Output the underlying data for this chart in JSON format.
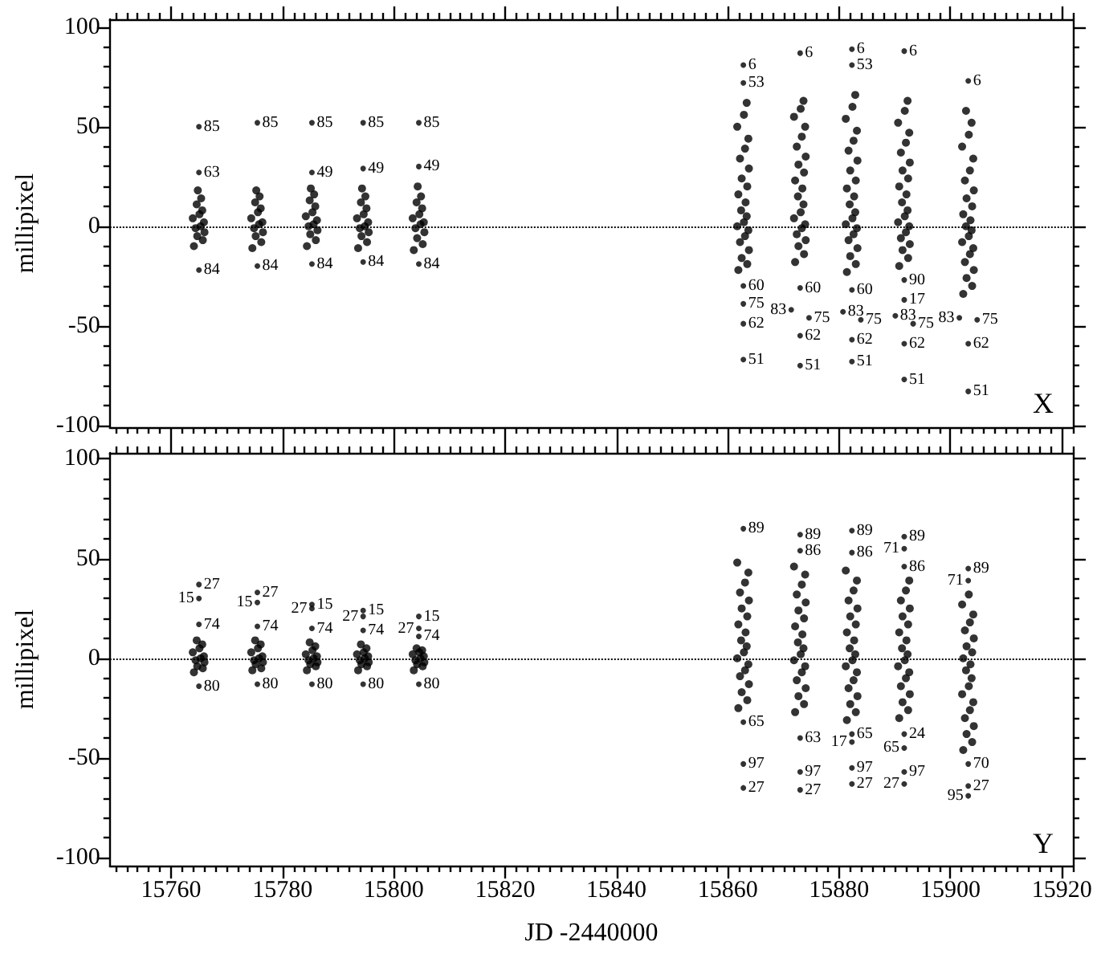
{
  "chart_data": [
    {
      "type": "scatter",
      "ylabel": "millipixel",
      "xlim": [
        15749,
        15922
      ],
      "xticks": [
        15760,
        15780,
        15800,
        15820,
        15840,
        15860,
        15880,
        15900,
        15920
      ],
      "ylim": [
        -101,
        104
      ],
      "yticks": [
        -100,
        -50,
        0,
        50,
        100
      ],
      "tick_labels": "y",
      "marker": "circle",
      "ref_lines": [
        {
          "axis": "y",
          "value": 0,
          "line_style": "dotted"
        }
      ],
      "annotations": [
        "X",
        {
          "text": "85",
          "x": 15765,
          "y": 50
        },
        {
          "text": "63",
          "x": 15765,
          "y": 27
        },
        {
          "text": "84",
          "x": 15765,
          "y": -22
        },
        {
          "text": "85",
          "x": 15775.5,
          "y": 52
        },
        {
          "text": "84",
          "x": 15775.5,
          "y": -20
        },
        {
          "text": "85",
          "x": 15785.3,
          "y": 52
        },
        {
          "text": "49",
          "x": 15785.3,
          "y": 27
        },
        {
          "text": "84",
          "x": 15785.3,
          "y": -19
        },
        {
          "text": "85",
          "x": 15794.5,
          "y": 52
        },
        {
          "text": "49",
          "x": 15794.5,
          "y": 29
        },
        {
          "text": "84",
          "x": 15794.5,
          "y": -18
        },
        {
          "text": "85",
          "x": 15804.5,
          "y": 52
        },
        {
          "text": "49",
          "x": 15804.5,
          "y": 30
        },
        {
          "text": "84",
          "x": 15804.5,
          "y": -19
        },
        {
          "text": "6",
          "x": 15862.8,
          "y": 81
        },
        {
          "text": "53",
          "x": 15862.8,
          "y": 72
        },
        {
          "text": "60",
          "x": 15862.8,
          "y": -30
        },
        {
          "text": "75",
          "x": 15862.8,
          "y": -39
        },
        {
          "text": "62",
          "x": 15862.8,
          "y": -49
        },
        {
          "text": "51",
          "x": 15862.8,
          "y": -67
        },
        {
          "text": "6",
          "x": 15873,
          "y": 87
        },
        {
          "text": "60",
          "x": 15873,
          "y": -31
        },
        {
          "text": "83",
          "x": 15871.4,
          "y": -42
        },
        {
          "text": "75",
          "x": 15874.6,
          "y": -46
        },
        {
          "text": "62",
          "x": 15873,
          "y": -55
        },
        {
          "text": "51",
          "x": 15873,
          "y": -70
        },
        {
          "text": "6",
          "x": 15882.3,
          "y": 89
        },
        {
          "text": "53",
          "x": 15882.3,
          "y": 81
        },
        {
          "text": "60",
          "x": 15882.3,
          "y": -32
        },
        {
          "text": "83",
          "x": 15880.7,
          "y": -43
        },
        {
          "text": "75",
          "x": 15883.9,
          "y": -47
        },
        {
          "text": "62",
          "x": 15882.3,
          "y": -57
        },
        {
          "text": "51",
          "x": 15882.3,
          "y": -68
        },
        {
          "text": "6",
          "x": 15891.7,
          "y": 88
        },
        {
          "text": "90",
          "x": 15891.7,
          "y": -27
        },
        {
          "text": "17",
          "x": 15891.7,
          "y": -37
        },
        {
          "text": "83",
          "x": 15890.1,
          "y": -45
        },
        {
          "text": "75",
          "x": 15893.3,
          "y": -49
        },
        {
          "text": "62",
          "x": 15891.7,
          "y": -59
        },
        {
          "text": "51",
          "x": 15891.7,
          "y": -77
        },
        {
          "text": "6",
          "x": 15903.2,
          "y": 73
        },
        {
          "text": "83",
          "x": 15901.6,
          "y": -46
        },
        {
          "text": "75",
          "x": 15904.8,
          "y": -47
        },
        {
          "text": "62",
          "x": 15903.2,
          "y": -59
        },
        {
          "text": "51",
          "x": 15903.2,
          "y": -83
        }
      ],
      "series": [
        {
          "color": "#000000",
          "x": [
            15764.1,
            15765.7,
            15764.7,
            15766.0,
            15764.4,
            15765.3,
            15765.9,
            15763.9,
            15765.1,
            15765.6,
            15764.6,
            15765.4,
            15764.8,
            15774.6,
            15776.2,
            15775.2,
            15776.5,
            15774.9,
            15775.8,
            15776.4,
            15774.4,
            15775.6,
            15776.1,
            15775.1,
            15775.9,
            15775.3,
            15784.4,
            15786.0,
            15785.0,
            15786.3,
            15784.7,
            15785.6,
            15786.2,
            15784.2,
            15785.4,
            15785.9,
            15784.9,
            15785.7,
            15785.1,
            15793.6,
            15795.2,
            15794.2,
            15795.5,
            15793.9,
            15794.8,
            15795.4,
            15793.4,
            15794.6,
            15795.1,
            15794.1,
            15794.9,
            15794.3,
            15803.6,
            15805.2,
            15804.2,
            15805.5,
            15803.9,
            15804.8,
            15805.4,
            15803.4,
            15804.6,
            15805.1,
            15804.1,
            15804.9,
            15804.3,
            15861.9,
            15863.5,
            15862.5,
            15863.8,
            15862.2,
            15863.1,
            15863.7,
            15861.7,
            15862.9,
            15863.4,
            15862.4,
            15863.2,
            15861.9,
            15863.5,
            15862.5,
            15863.8,
            15862.2,
            15863.1,
            15863.7,
            15861.7,
            15862.9,
            15863.4,
            15872.1,
            15873.7,
            15872.7,
            15874.0,
            15872.4,
            15873.3,
            15873.9,
            15871.9,
            15873.1,
            15873.6,
            15872.6,
            15873.4,
            15872.1,
            15873.7,
            15872.7,
            15874.0,
            15872.4,
            15873.3,
            15873.9,
            15871.9,
            15873.1,
            15873.6,
            15881.4,
            15883.0,
            15882.0,
            15883.3,
            15881.7,
            15882.6,
            15883.2,
            15881.2,
            15882.4,
            15882.9,
            15881.9,
            15882.7,
            15881.4,
            15883.0,
            15882.0,
            15883.3,
            15881.7,
            15882.6,
            15883.2,
            15881.2,
            15882.4,
            15882.9,
            15890.8,
            15892.4,
            15891.4,
            15892.7,
            15891.1,
            15892.0,
            15892.6,
            15890.6,
            15891.8,
            15892.3,
            15891.3,
            15892.1,
            15890.8,
            15892.4,
            15891.4,
            15892.7,
            15891.1,
            15892.0,
            15892.6,
            15890.6,
            15891.8,
            15892.3,
            15902.3,
            15903.9,
            15902.9,
            15904.2,
            15902.6,
            15903.5,
            15904.1,
            15902.1,
            15903.3,
            15903.8,
            15902.8,
            15903.6,
            15902.3,
            15903.9,
            15902.9,
            15904.2,
            15902.6,
            15903.5,
            15904.1,
            15902.1,
            15903.3,
            15903.8,
            15902.8
          ],
          "values": [
            -10,
            -7,
            -5,
            -3,
            -1,
            0,
            2,
            4,
            6,
            8,
            11,
            14,
            18,
            -11,
            -8,
            -5,
            -3,
            -1,
            1,
            2,
            4,
            7,
            9,
            12,
            15,
            18,
            -10,
            -7,
            -4,
            -2,
            0,
            1,
            3,
            5,
            7,
            10,
            13,
            16,
            19,
            -11,
            -8,
            -5,
            -3,
            -1,
            0,
            2,
            4,
            6,
            9,
            12,
            15,
            19,
            -12,
            -9,
            -6,
            -3,
            -1,
            1,
            2,
            4,
            6,
            9,
            12,
            15,
            20,
            -22,
            -19,
            -16,
            -12,
            -8,
            -5,
            -2,
            0,
            2,
            5,
            8,
            12,
            16,
            20,
            24,
            29,
            34,
            39,
            44,
            50,
            56,
            62,
            -18,
            -14,
            -10,
            -7,
            -4,
            -1,
            1,
            4,
            7,
            11,
            15,
            19,
            23,
            27,
            31,
            35,
            40,
            45,
            50,
            55,
            59,
            63,
            -23,
            -19,
            -15,
            -11,
            -7,
            -4,
            -1,
            1,
            4,
            7,
            11,
            15,
            19,
            23,
            28,
            33,
            38,
            43,
            48,
            54,
            60,
            66,
            -20,
            -16,
            -12,
            -9,
            -6,
            -3,
            0,
            2,
            5,
            8,
            12,
            16,
            20,
            24,
            28,
            32,
            37,
            42,
            47,
            52,
            58,
            63,
            -34,
            -30,
            -26,
            -22,
            -18,
            -14,
            -11,
            -8,
            -5,
            -2,
            0,
            3,
            6,
            10,
            14,
            18,
            23,
            28,
            34,
            40,
            46,
            52,
            58
          ]
        },
        {
          "color": "#000000",
          "x": [
            15765,
            15765,
            15765,
            15775.5,
            15775.5,
            15785.3,
            15785.3,
            15785.3,
            15794.5,
            15794.5,
            15794.5,
            15804.5,
            15804.5,
            15804.5,
            15862.8,
            15862.8,
            15862.8,
            15862.8,
            15862.8,
            15862.8,
            15873,
            15873,
            15871.4,
            15874.6,
            15873,
            15873,
            15882.3,
            15882.3,
            15882.3,
            15880.7,
            15883.9,
            15882.3,
            15882.3,
            15891.7,
            15891.7,
            15891.7,
            15890.1,
            15893.3,
            15891.7,
            15891.7,
            15903.2,
            15901.6,
            15904.8,
            15903.2,
            15903.2
          ],
          "values": [
            50,
            27,
            -22,
            52,
            -20,
            52,
            27,
            -19,
            52,
            29,
            -18,
            52,
            30,
            -19,
            81,
            72,
            -30,
            -39,
            -49,
            -67,
            87,
            -31,
            -42,
            -46,
            -55,
            -70,
            89,
            81,
            -32,
            -43,
            -47,
            -57,
            -68,
            88,
            -27,
            -37,
            -45,
            -49,
            -59,
            -77,
            73,
            -46,
            -47,
            -59,
            -83
          ]
        }
      ]
    },
    {
      "type": "scatter",
      "xlabel": "JD -2440000",
      "ylabel": "millipixel",
      "xlim": [
        15749,
        15922
      ],
      "xticks": [
        15760,
        15780,
        15800,
        15820,
        15840,
        15860,
        15880,
        15900,
        15920
      ],
      "ylim": [
        -104,
        103
      ],
      "yticks": [
        -100,
        -50,
        0,
        50,
        100
      ],
      "marker": "circle",
      "ref_lines": [
        {
          "axis": "y",
          "value": 0,
          "line_style": "dotted"
        }
      ],
      "annotations": [
        "Y",
        {
          "text": "27",
          "x": 15765,
          "y": 37
        },
        {
          "text": "15",
          "x": 15765,
          "y": 30
        },
        {
          "text": "74",
          "x": 15765,
          "y": 17
        },
        {
          "text": "80",
          "x": 15765,
          "y": -14
        },
        {
          "text": "27",
          "x": 15775.5,
          "y": 33
        },
        {
          "text": "15",
          "x": 15775.5,
          "y": 28
        },
        {
          "text": "74",
          "x": 15775.5,
          "y": 16
        },
        {
          "text": "80",
          "x": 15775.5,
          "y": -13
        },
        {
          "text": "15",
          "x": 15785.3,
          "y": 27
        },
        {
          "text": "27",
          "x": 15785.3,
          "y": 25
        },
        {
          "text": "74",
          "x": 15785.3,
          "y": 15
        },
        {
          "text": "80",
          "x": 15785.3,
          "y": -13
        },
        {
          "text": "15",
          "x": 15794.5,
          "y": 24
        },
        {
          "text": "27",
          "x": 15794.5,
          "y": 21
        },
        {
          "text": "74",
          "x": 15794.5,
          "y": 14
        },
        {
          "text": "80",
          "x": 15794.5,
          "y": -13
        },
        {
          "text": "15",
          "x": 15804.5,
          "y": 21
        },
        {
          "text": "27",
          "x": 15804.5,
          "y": 15
        },
        {
          "text": "74",
          "x": 15804.5,
          "y": 11
        },
        {
          "text": "80",
          "x": 15804.5,
          "y": -13
        },
        {
          "text": "89",
          "x": 15862.8,
          "y": 65
        },
        {
          "text": "65",
          "x": 15862.8,
          "y": -32
        },
        {
          "text": "97",
          "x": 15862.8,
          "y": -53
        },
        {
          "text": "27",
          "x": 15862.8,
          "y": -65
        },
        {
          "text": "89",
          "x": 15873,
          "y": 62
        },
        {
          "text": "86",
          "x": 15873,
          "y": 54
        },
        {
          "text": "63",
          "x": 15873,
          "y": -40
        },
        {
          "text": "97",
          "x": 15873,
          "y": -57
        },
        {
          "text": "27",
          "x": 15873,
          "y": -66
        },
        {
          "text": "89",
          "x": 15882.3,
          "y": 64
        },
        {
          "text": "86",
          "x": 15882.3,
          "y": 53
        },
        {
          "text": "65",
          "x": 15882.3,
          "y": -38
        },
        {
          "text": "17",
          "x": 15882.3,
          "y": -42
        },
        {
          "text": "97",
          "x": 15882.3,
          "y": -55
        },
        {
          "text": "27",
          "x": 15882.3,
          "y": -63
        },
        {
          "text": "89",
          "x": 15891.7,
          "y": 61
        },
        {
          "text": "71",
          "x": 15891.7,
          "y": 55
        },
        {
          "text": "86",
          "x": 15891.7,
          "y": 46
        },
        {
          "text": "24",
          "x": 15891.7,
          "y": -38
        },
        {
          "text": "65",
          "x": 15891.7,
          "y": -45
        },
        {
          "text": "97",
          "x": 15891.7,
          "y": -57
        },
        {
          "text": "27",
          "x": 15891.7,
          "y": -63
        },
        {
          "text": "89",
          "x": 15903.2,
          "y": 45
        },
        {
          "text": "71",
          "x": 15903.2,
          "y": 39
        },
        {
          "text": "70",
          "x": 15903.2,
          "y": -53
        },
        {
          "text": "27",
          "x": 15903.2,
          "y": -64
        },
        {
          "text": "95",
          "x": 15903.2,
          "y": -69
        }
      ],
      "series": [
        {
          "color": "#000000",
          "x": [
            15764.1,
            15765.7,
            15764.7,
            15766.0,
            15764.4,
            15765.3,
            15765.9,
            15763.9,
            15765.1,
            15765.6,
            15764.6,
            15774.6,
            15776.2,
            15775.2,
            15776.5,
            15774.9,
            15775.8,
            15776.4,
            15774.4,
            15775.6,
            15776.1,
            15775.1,
            15784.4,
            15786.0,
            15785.0,
            15786.3,
            15784.7,
            15785.6,
            15786.2,
            15784.2,
            15785.4,
            15785.9,
            15784.9,
            15793.6,
            15795.2,
            15794.2,
            15795.5,
            15793.9,
            15794.8,
            15795.4,
            15793.4,
            15794.6,
            15795.1,
            15794.1,
            15803.6,
            15805.2,
            15804.2,
            15805.5,
            15803.9,
            15804.8,
            15805.4,
            15803.4,
            15804.6,
            15805.1,
            15804.1,
            15861.9,
            15863.5,
            15862.5,
            15863.8,
            15862.2,
            15863.1,
            15863.7,
            15861.7,
            15862.9,
            15863.4,
            15862.4,
            15863.2,
            15861.9,
            15863.5,
            15862.5,
            15863.8,
            15862.2,
            15863.1,
            15863.7,
            15861.7,
            15872.1,
            15873.7,
            15872.7,
            15874.0,
            15872.4,
            15873.3,
            15873.9,
            15871.9,
            15873.1,
            15873.6,
            15872.6,
            15873.4,
            15872.1,
            15873.7,
            15872.7,
            15874.0,
            15872.4,
            15873.3,
            15873.9,
            15871.9,
            15881.4,
            15883.0,
            15882.0,
            15883.3,
            15881.7,
            15882.6,
            15883.2,
            15881.2,
            15882.4,
            15882.9,
            15881.9,
            15882.7,
            15881.4,
            15883.0,
            15882.0,
            15883.3,
            15881.7,
            15882.6,
            15883.2,
            15881.2,
            15890.8,
            15892.4,
            15891.4,
            15892.7,
            15891.1,
            15892.0,
            15892.6,
            15890.6,
            15891.8,
            15892.3,
            15891.3,
            15892.1,
            15890.8,
            15892.4,
            15891.4,
            15892.7,
            15891.1,
            15892.0,
            15892.6,
            15902.3,
            15903.9,
            15902.9,
            15904.2,
            15902.6,
            15903.5,
            15904.1,
            15902.1,
            15903.3,
            15903.8,
            15902.8,
            15903.6,
            15902.3,
            15903.9,
            15902.9,
            15904.2,
            15902.6,
            15903.5,
            15904.1,
            15902.1,
            15903.3
          ],
          "values": [
            -7,
            -5,
            -4,
            -2,
            -1,
            0,
            1,
            3,
            5,
            7,
            9,
            -6,
            -5,
            -3,
            -2,
            -1,
            0,
            1,
            3,
            5,
            7,
            9,
            -6,
            -4,
            -3,
            -2,
            -1,
            0,
            1,
            2,
            4,
            6,
            8,
            -6,
            -4,
            -3,
            -2,
            -1,
            0,
            1,
            2,
            3,
            5,
            7,
            -6,
            -4,
            -3,
            -2,
            -1,
            0,
            1,
            2,
            3,
            4,
            5,
            -25,
            -21,
            -17,
            -13,
            -9,
            -6,
            -3,
            0,
            3,
            6,
            9,
            13,
            17,
            21,
            25,
            29,
            33,
            38,
            43,
            48,
            -27,
            -23,
            -19,
            -15,
            -11,
            -7,
            -4,
            -1,
            2,
            5,
            8,
            12,
            16,
            20,
            24,
            28,
            32,
            37,
            42,
            46,
            -31,
            -27,
            -23,
            -19,
            -15,
            -11,
            -7,
            -4,
            -1,
            2,
            5,
            9,
            13,
            17,
            21,
            25,
            29,
            34,
            39,
            44,
            -30,
            -26,
            -22,
            -18,
            -14,
            -10,
            -7,
            -4,
            -1,
            2,
            5,
            9,
            13,
            17,
            21,
            25,
            29,
            34,
            39,
            -46,
            -42,
            -38,
            -34,
            -30,
            -26,
            -22,
            -18,
            -14,
            -10,
            -6,
            -3,
            0,
            3,
            6,
            10,
            14,
            18,
            22,
            27,
            32
          ]
        },
        {
          "color": "#000000",
          "x": [
            15765,
            15765,
            15765,
            15765,
            15775.5,
            15775.5,
            15775.5,
            15775.5,
            15785.3,
            15785.3,
            15785.3,
            15785.3,
            15794.5,
            15794.5,
            15794.5,
            15794.5,
            15804.5,
            15804.5,
            15804.5,
            15804.5,
            15862.8,
            15862.8,
            15862.8,
            15862.8,
            15873,
            15873,
            15873,
            15873,
            15873,
            15882.3,
            15882.3,
            15882.3,
            15882.3,
            15882.3,
            15882.3,
            15891.7,
            15891.7,
            15891.7,
            15891.7,
            15891.7,
            15891.7,
            15891.7,
            15903.2,
            15903.2,
            15903.2,
            15903.2,
            15903.2
          ],
          "values": [
            37,
            30,
            17,
            -14,
            33,
            28,
            16,
            -13,
            27,
            25,
            15,
            -13,
            24,
            21,
            14,
            -13,
            21,
            15,
            11,
            -13,
            65,
            -32,
            -53,
            -65,
            62,
            54,
            -40,
            -57,
            -66,
            64,
            53,
            -38,
            -42,
            -55,
            -63,
            61,
            55,
            46,
            -38,
            -45,
            -57,
            -63,
            45,
            39,
            -53,
            -64,
            -69
          ]
        }
      ]
    }
  ]
}
